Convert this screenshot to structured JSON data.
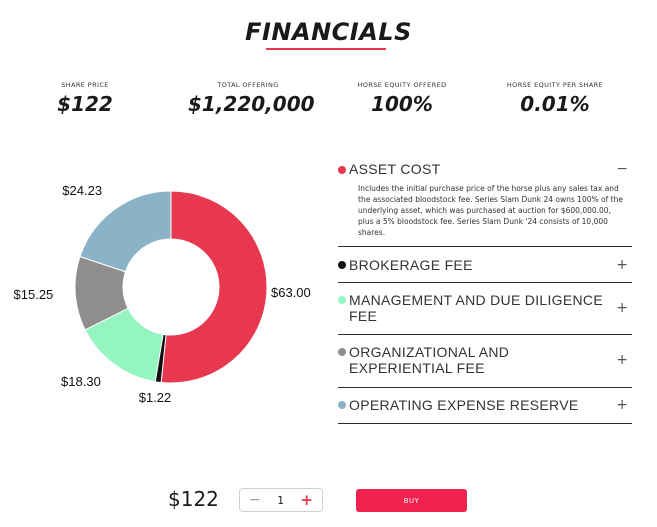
{
  "title": "FINANCIALS",
  "stats": [
    {
      "label": "SHARE PRICE",
      "value": "$122"
    },
    {
      "label": "TOTAL OFFERING",
      "value": "$1,220,000"
    },
    {
      "label": "HORSE EQUITY OFFERED",
      "value": "100%"
    },
    {
      "label": "HORSE EQUITY PER SHARE",
      "value": "0.01%"
    }
  ],
  "chart_data": {
    "type": "pie",
    "categories": [
      "ASSET COST",
      "BROKERAGE FEE",
      "MANAGEMENT AND DUE DILIGENCE FEE",
      "ORGANIZATIONAL AND EXPERIENTIAL FEE",
      "OPERATING EXPENSE RESERVE"
    ],
    "values": [
      63.0,
      1.22,
      18.3,
      15.25,
      24.23
    ],
    "labels": [
      "$63.00",
      "$1.22",
      "$18.30",
      "$15.25",
      "$24.23"
    ],
    "colors": [
      "#e8384f",
      "#111111",
      "#94f5c0",
      "#8e8e8e",
      "#8ab3c8"
    ]
  },
  "accordion": [
    {
      "title": "ASSET COST",
      "toggle": "−",
      "color": "#e8384f",
      "expanded": true,
      "body": "Includes the initial purchase price of the horse plus any sales tax and the associated bloodstock fee. Series Slam Dunk 24 owns 100% of the underlying asset, which was purchased at auction for $600,000.00, plus a 5% bloodstock fee. Series Slam Dunk '24 consists of 10,000 shares."
    },
    {
      "title": "BROKERAGE FEE",
      "toggle": "+",
      "color": "#111111",
      "expanded": false,
      "body": ""
    },
    {
      "title": "MANAGEMENT AND DUE DILIGENCE FEE",
      "toggle": "+",
      "color": "#94f5c0",
      "expanded": false,
      "body": ""
    },
    {
      "title": "ORGANIZATIONAL AND EXPERIENTIAL FEE",
      "toggle": "+",
      "color": "#8e8e8e",
      "expanded": false,
      "body": ""
    },
    {
      "title": "OPERATING EXPENSE RESERVE",
      "toggle": "+",
      "color": "#8ab3c8",
      "expanded": false,
      "body": ""
    }
  ],
  "purchase": {
    "price": "$122",
    "minus": "−",
    "quantity": "1",
    "plus": "+",
    "buy_label": "BUY"
  }
}
